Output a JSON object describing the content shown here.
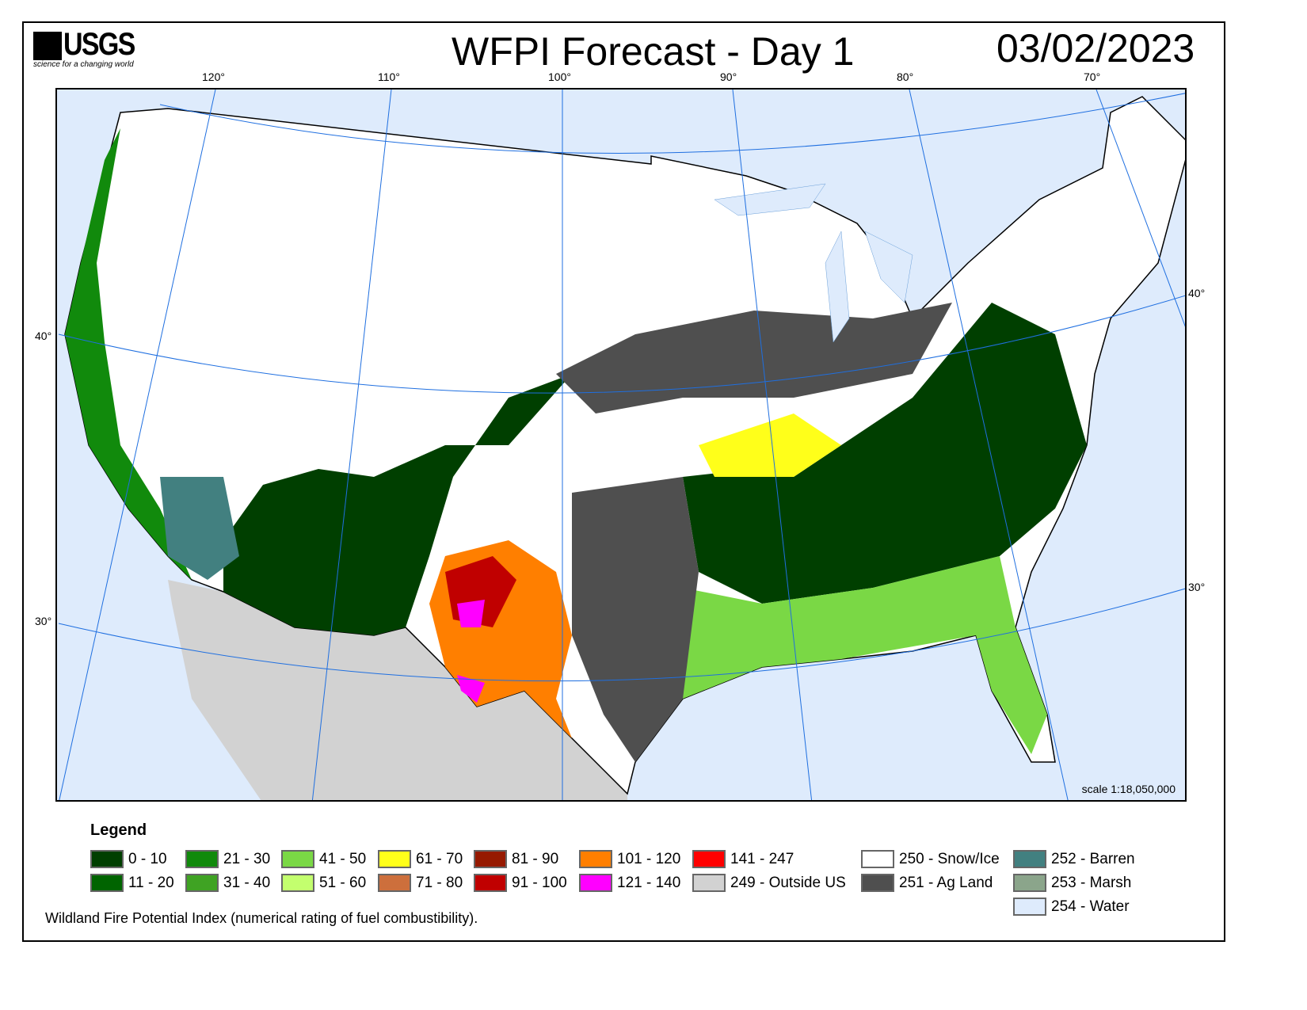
{
  "header": {
    "logo_text": "USGS",
    "logo_tagline": "science for a changing world",
    "title": "WFPI Forecast - Day 1",
    "date": "03/02/2023"
  },
  "graticule": {
    "longitudes": [
      "120°",
      "110°",
      "100°",
      "90°",
      "80°",
      "70°"
    ],
    "latitudes_left": [
      "40°",
      "30°"
    ],
    "latitudes_right": [
      "40°",
      "30°"
    ]
  },
  "map": {
    "scale": "scale 1:18,050,000"
  },
  "legend": {
    "title": "Legend",
    "items": [
      {
        "label": "0 - 10",
        "color": "#003f00"
      },
      {
        "label": "11 - 20",
        "color": "#006400"
      },
      {
        "label": "21 - 30",
        "color": "#118a0c"
      },
      {
        "label": "31 - 40",
        "color": "#3fa323"
      },
      {
        "label": "41 - 50",
        "color": "#7ad845"
      },
      {
        "label": "51 - 60",
        "color": "#c3ff6e"
      },
      {
        "label": "61 - 70",
        "color": "#ffff1a"
      },
      {
        "label": "71 - 80",
        "color": "#cd6f3c"
      },
      {
        "label": "81 - 90",
        "color": "#961900"
      },
      {
        "label": "91 - 100",
        "color": "#c00000"
      },
      {
        "label": "101 - 120",
        "color": "#ff7f00"
      },
      {
        "label": "121 - 140",
        "color": "#ff00ff"
      },
      {
        "label": "141 - 247",
        "color": "#ff0000"
      },
      {
        "label": "249 - Outside US",
        "color": "#d2d2d2"
      },
      {
        "label": "250 - Snow/Ice",
        "color": "#ffffff"
      },
      {
        "label": "251 - Ag Land",
        "color": "#4f4f4f"
      },
      {
        "label": "252 - Barren",
        "color": "#428080"
      },
      {
        "label": "253 - Marsh",
        "color": "#8ba58b"
      },
      {
        "label": "254 - Water",
        "color": "#deebfc"
      }
    ],
    "note": "Wildland Fire Potential Index (numerical rating of fuel combustibility)."
  }
}
